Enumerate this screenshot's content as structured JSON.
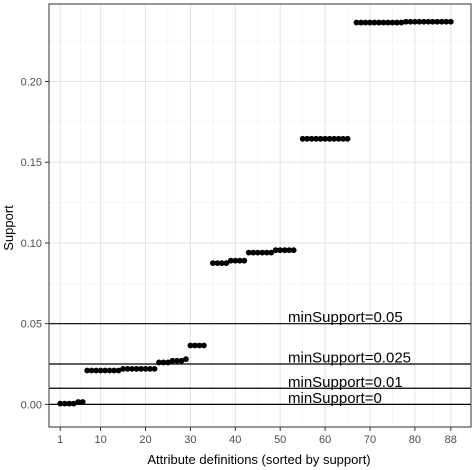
{
  "chart_data": {
    "type": "scatter",
    "xlabel": "Attribute definitions (sorted by support)",
    "ylabel": "Support",
    "xlim": [
      -1.5,
      92.5
    ],
    "ylim": [
      -0.014,
      0.248
    ],
    "x_ticks": [
      1,
      10,
      20,
      30,
      40,
      50,
      60,
      70,
      80,
      88
    ],
    "x_tick_labels": [
      "1",
      "10",
      "20",
      "30",
      "40",
      "50",
      "60",
      "70",
      "80",
      "88"
    ],
    "y_ticks": [
      0.0,
      0.05,
      0.1,
      0.15,
      0.2
    ],
    "y_tick_labels": [
      "0.00",
      "0.05",
      "0.10",
      "0.15",
      "0.20"
    ],
    "grid": true,
    "point_color": "#000000",
    "segments": [
      {
        "x_start": 1,
        "x_end": 4,
        "y": 0.0005
      },
      {
        "x_start": 5,
        "x_end": 6,
        "y": 0.0015
      },
      {
        "x_start": 7,
        "x_end": 14,
        "y": 0.021
      },
      {
        "x_start": 15,
        "x_end": 22,
        "y": 0.022
      },
      {
        "x_start": 23,
        "x_end": 25,
        "y": 0.026
      },
      {
        "x_start": 26,
        "x_end": 28,
        "y": 0.027
      },
      {
        "x_start": 29,
        "x_end": 29,
        "y": 0.028
      },
      {
        "x_start": 30,
        "x_end": 33,
        "y": 0.0365
      },
      {
        "x_start": 35,
        "x_end": 38,
        "y": 0.0875
      },
      {
        "x_start": 39,
        "x_end": 42,
        "y": 0.089
      },
      {
        "x_start": 43,
        "x_end": 48,
        "y": 0.094
      },
      {
        "x_start": 49,
        "x_end": 53,
        "y": 0.0955
      },
      {
        "x_start": 55,
        "x_end": 65,
        "y": 0.1645
      },
      {
        "x_start": 67,
        "x_end": 77,
        "y": 0.2365
      },
      {
        "x_start": 78,
        "x_end": 88,
        "y": 0.237
      }
    ],
    "thresholds": [
      {
        "label": "minSupport=0.05",
        "value": 0.05
      },
      {
        "label": "minSupport=0.025",
        "value": 0.025
      },
      {
        "label": "minSupport=0.01",
        "value": 0.01
      },
      {
        "label": "minSupport=0",
        "value": 0.0
      }
    ]
  }
}
